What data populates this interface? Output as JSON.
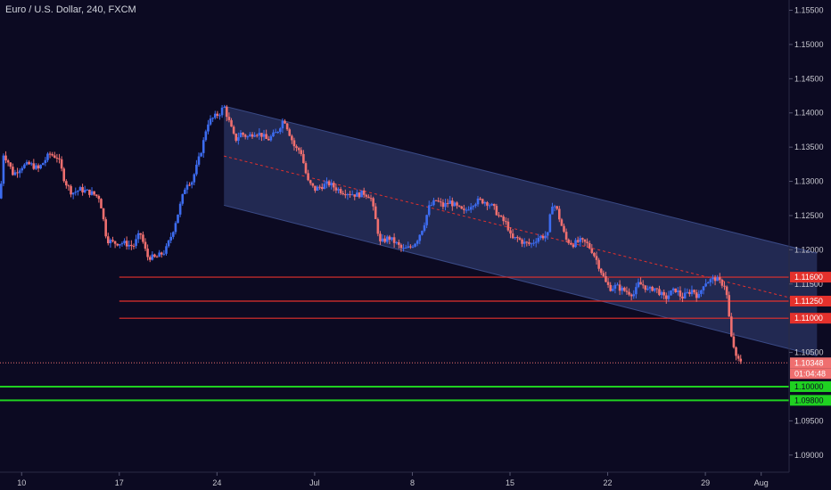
{
  "title": "Euro / U.S. Dollar, 240, FXCM",
  "colors": {
    "background": "#0c0a22",
    "up": "#3d6cf0",
    "down": "#ef6f6f",
    "channel_fill": "#2a3463",
    "resistance": "#e4312c",
    "support": "#1fd121",
    "axis_text": "#c8c8d0"
  },
  "chart_data": {
    "type": "candlestick",
    "title": "Euro / U.S. Dollar, 240, FXCM",
    "y_ticks": [
      "1.15500",
      "1.15000",
      "1.14500",
      "1.14000",
      "1.13500",
      "1.13000",
      "1.12500",
      "1.12000",
      "1.11500",
      "1.10500",
      "1.09500",
      "1.09000"
    ],
    "ylim": [
      1.0875,
      1.1565
    ],
    "x_ticks": [
      {
        "label": "10",
        "day": 0
      },
      {
        "label": "17",
        "day": 7
      },
      {
        "label": "24",
        "day": 14
      },
      {
        "label": "Jul",
        "day": 21
      },
      {
        "label": "8",
        "day": 28
      },
      {
        "label": "15",
        "day": 35
      },
      {
        "label": "22",
        "day": 42
      },
      {
        "label": "29",
        "day": 49
      },
      {
        "label": "Aug",
        "day": 53
      }
    ],
    "xlim": [
      -1.55,
      55.0
    ],
    "price_path": [
      [
        -1.55,
        1.1275
      ],
      [
        -1.3,
        1.134
      ],
      [
        -1.0,
        1.133
      ],
      [
        -0.6,
        1.131
      ],
      [
        0.0,
        1.1322
      ],
      [
        0.6,
        1.1325
      ],
      [
        1.2,
        1.1318
      ],
      [
        2.0,
        1.134
      ],
      [
        2.6,
        1.1335
      ],
      [
        3.1,
        1.13
      ],
      [
        3.6,
        1.1283
      ],
      [
        4.2,
        1.1288
      ],
      [
        5.0,
        1.1283
      ],
      [
        5.6,
        1.1276
      ],
      [
        6.1,
        1.1215
      ],
      [
        6.6,
        1.121
      ],
      [
        7.3,
        1.121
      ],
      [
        8.0,
        1.1205
      ],
      [
        8.5,
        1.1225
      ],
      [
        9.0,
        1.119
      ],
      [
        9.6,
        1.1188
      ],
      [
        10.3,
        1.1198
      ],
      [
        10.8,
        1.1225
      ],
      [
        11.3,
        1.126
      ],
      [
        11.8,
        1.1298
      ],
      [
        12.2,
        1.13
      ],
      [
        12.6,
        1.1325
      ],
      [
        13.0,
        1.1355
      ],
      [
        13.3,
        1.1385
      ],
      [
        13.7,
        1.1392
      ],
      [
        14.2,
        1.14
      ],
      [
        14.5,
        1.141
      ],
      [
        14.9,
        1.1385
      ],
      [
        15.3,
        1.136
      ],
      [
        15.7,
        1.137
      ],
      [
        16.2,
        1.1365
      ],
      [
        16.7,
        1.1372
      ],
      [
        17.2,
        1.1368
      ],
      [
        17.6,
        1.136
      ],
      [
        18.3,
        1.1372
      ],
      [
        18.8,
        1.1392
      ],
      [
        19.2,
        1.137
      ],
      [
        19.6,
        1.1348
      ],
      [
        20.0,
        1.1345
      ],
      [
        20.5,
        1.13
      ],
      [
        21.0,
        1.1288
      ],
      [
        21.5,
        1.1293
      ],
      [
        22.0,
        1.1297
      ],
      [
        22.5,
        1.129
      ],
      [
        23.0,
        1.1285
      ],
      [
        23.5,
        1.1283
      ],
      [
        24.0,
        1.128
      ],
      [
        24.5,
        1.1283
      ],
      [
        25.0,
        1.1278
      ],
      [
        25.3,
        1.125
      ],
      [
        25.7,
        1.121
      ],
      [
        26.3,
        1.1218
      ],
      [
        26.8,
        1.121
      ],
      [
        27.3,
        1.12
      ],
      [
        27.8,
        1.1203
      ],
      [
        28.3,
        1.1213
      ],
      [
        28.8,
        1.1235
      ],
      [
        29.2,
        1.1262
      ],
      [
        29.7,
        1.1272
      ],
      [
        30.2,
        1.1264
      ],
      [
        30.7,
        1.127
      ],
      [
        31.2,
        1.1262
      ],
      [
        31.7,
        1.1255
      ],
      [
        32.3,
        1.1268
      ],
      [
        32.8,
        1.1272
      ],
      [
        33.3,
        1.127
      ],
      [
        33.8,
        1.1262
      ],
      [
        34.3,
        1.1246
      ],
      [
        34.8,
        1.1237
      ],
      [
        35.1,
        1.1215
      ],
      [
        35.5,
        1.1217
      ],
      [
        36.0,
        1.121
      ],
      [
        36.5,
        1.1208
      ],
      [
        37.0,
        1.1218
      ],
      [
        37.4,
        1.122
      ],
      [
        37.7,
        1.1222
      ],
      [
        38.0,
        1.1268
      ],
      [
        38.3,
        1.1262
      ],
      [
        38.7,
        1.1235
      ],
      [
        39.0,
        1.1215
      ],
      [
        39.5,
        1.1208
      ],
      [
        40.0,
        1.1213
      ],
      [
        40.5,
        1.1209
      ],
      [
        40.9,
        1.1198
      ],
      [
        41.2,
        1.1185
      ],
      [
        41.6,
        1.1165
      ],
      [
        41.9,
        1.115
      ],
      [
        42.2,
        1.1144
      ],
      [
        42.6,
        1.1147
      ],
      [
        43.0,
        1.1142
      ],
      [
        43.5,
        1.1138
      ],
      [
        43.9,
        1.1135
      ],
      [
        44.2,
        1.115
      ],
      [
        44.6,
        1.1148
      ],
      [
        44.9,
        1.114
      ],
      [
        45.3,
        1.1145
      ],
      [
        45.7,
        1.1138
      ],
      [
        46.1,
        1.1128
      ],
      [
        46.5,
        1.1137
      ],
      [
        46.9,
        1.1142
      ],
      [
        47.3,
        1.113
      ],
      [
        47.7,
        1.1136
      ],
      [
        48.1,
        1.1142
      ],
      [
        48.5,
        1.113
      ],
      [
        48.9,
        1.1152
      ],
      [
        49.3,
        1.1155
      ],
      [
        49.7,
        1.1158
      ],
      [
        50.1,
        1.1152
      ],
      [
        50.4,
        1.1148
      ],
      [
        50.6,
        1.1125
      ],
      [
        50.8,
        1.108
      ],
      [
        51.0,
        1.106
      ],
      [
        51.2,
        1.1045
      ],
      [
        51.4,
        1.104
      ],
      [
        51.6,
        1.1035
      ]
    ],
    "channel": {
      "upper": [
        [
          14.5,
          1.141
        ],
        [
          57.0,
          1.1195
        ]
      ],
      "lower": [
        [
          14.5,
          1.1265
        ],
        [
          57.0,
          1.1045
        ]
      ],
      "median": [
        [
          14.5,
          1.1337
        ],
        [
          57.0,
          1.112
        ]
      ]
    },
    "horizontal_lines": [
      {
        "price": 1.116,
        "label": "1.11600",
        "color": "resistance",
        "start_day": 7.0
      },
      {
        "price": 1.1125,
        "label": "1.11250",
        "color": "resistance",
        "start_day": 7.0
      },
      {
        "price": 1.11,
        "label": "1.11000",
        "color": "resistance",
        "start_day": 7.0
      },
      {
        "price": 1.1,
        "label": "1.10000",
        "color": "support",
        "start_day": -1.55
      },
      {
        "price": 1.098,
        "label": "1.09800",
        "color": "support",
        "start_day": -1.55
      }
    ],
    "last_price": {
      "price": 1.10348,
      "label": "1.10348",
      "countdown": "01:04:48"
    }
  }
}
